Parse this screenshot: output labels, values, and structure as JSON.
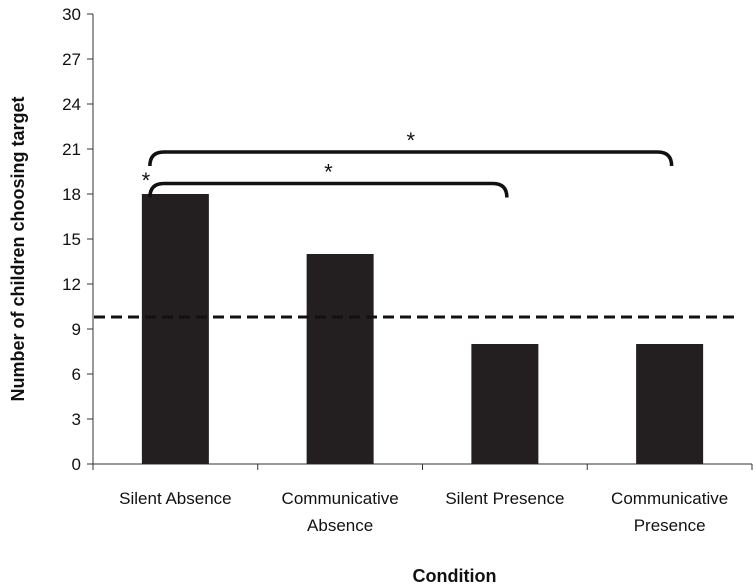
{
  "chart_data": {
    "type": "bar",
    "categories": [
      [
        "Silent Absence"
      ],
      [
        "Communicative",
        "Absence"
      ],
      [
        "Silent Presence"
      ],
      [
        "Communicative",
        "Presence"
      ]
    ],
    "values": [
      18,
      14,
      8,
      8
    ],
    "xlabel": "Condition",
    "ylabel": "Number of children choosing target",
    "ylim": [
      0,
      30
    ],
    "yticks": [
      0,
      3,
      6,
      9,
      12,
      15,
      18,
      21,
      24,
      27,
      30
    ],
    "reference_line": {
      "value": 9.8,
      "style": "dashed"
    },
    "bar_color": "#231f20",
    "significance": [
      {
        "label": "*",
        "bar": 0
      },
      {
        "label": "*",
        "from": 0,
        "to": 2,
        "level": 1
      },
      {
        "label": "*",
        "from": 0,
        "to": 3,
        "level": 2
      }
    ],
    "grid": false
  }
}
